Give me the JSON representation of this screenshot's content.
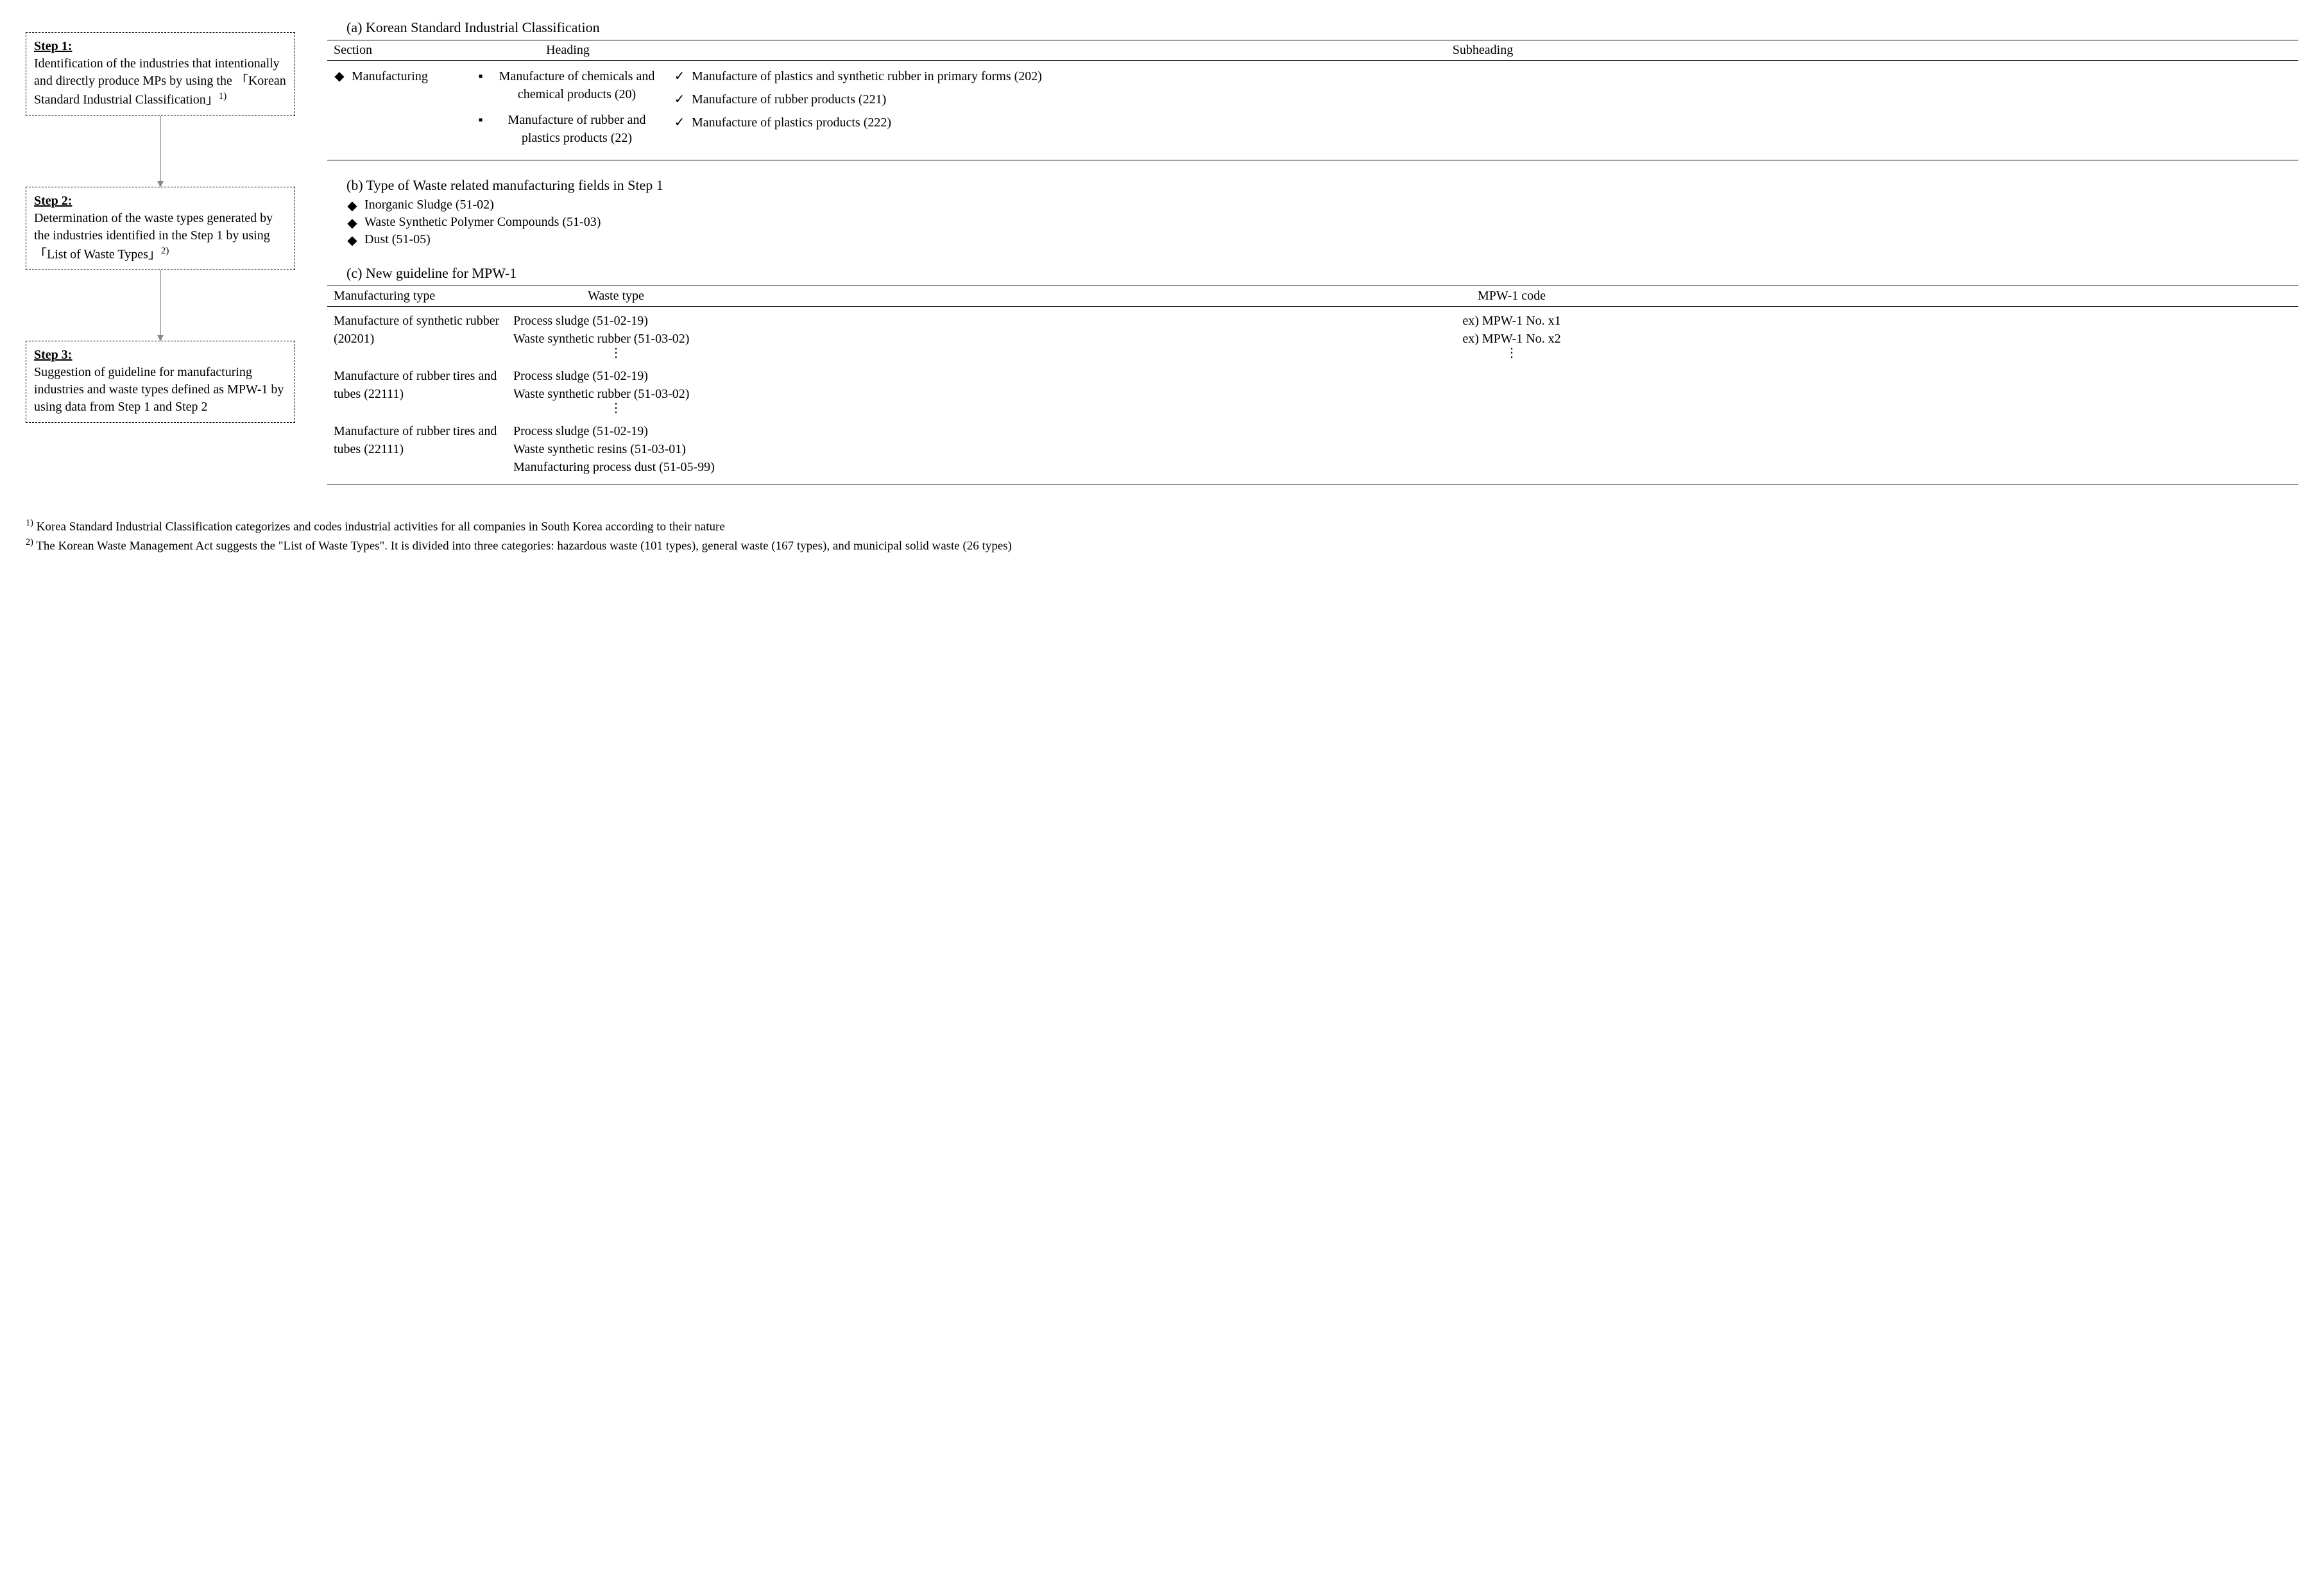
{
  "steps": [
    {
      "title": "Step 1:",
      "body": "Identification of the industries that intentionally and directly produce MPs by using the 「Korean Standard Industrial Classification」",
      "sup": "1)"
    },
    {
      "title": "Step 2:",
      "body": "Determination of the waste types generated by the industries identified in the Step 1 by using 「List of Waste Types」",
      "sup": "2)"
    },
    {
      "title": "Step 3:",
      "body": "Suggestion of guideline for manufacturing industries and waste types defined as MPW-1 by using data from Step 1 and Step 2",
      "sup": ""
    }
  ],
  "panel_a": {
    "title": "(a) Korean Standard Industrial Classification",
    "headers": [
      "Section",
      "Heading",
      "Subheading"
    ],
    "section_label": "Manufacturing",
    "headings": [
      "Manufacture of chemicals and chemical products (20)",
      "Manufacture of rubber and plastics products (22)"
    ],
    "subheadings": [
      "Manufacture of plastics and synthetic rubber in primary forms (202)",
      "Manufacture of rubber products (221)",
      "Manufacture of plastics products (222)"
    ]
  },
  "panel_b": {
    "title": "(b) Type of Waste related manufacturing fields in Step 1",
    "items": [
      "Inorganic Sludge (51-02)",
      "Waste Synthetic Polymer Compounds (51-03)",
      "Dust (51-05)"
    ]
  },
  "panel_c": {
    "title": "(c) New guideline for MPW-1",
    "headers": [
      "Manufacturing type",
      "Waste type",
      "MPW-1 code"
    ],
    "rows": [
      {
        "mfg": "Manufacture of synthetic rubber (20201)",
        "wastes": [
          "Process sludge (51-02-19)",
          "Waste synthetic rubber (51-03-02)"
        ],
        "codes": [
          "ex) MPW-1 No. x1",
          "ex) MPW-1 No. x2"
        ],
        "vdots_waste": true,
        "vdots_code": true
      },
      {
        "mfg": "Manufacture of rubber tires and tubes (22111)",
        "wastes": [
          "Process sludge (51-02-19)",
          "Waste synthetic rubber (51-03-02)"
        ],
        "codes": [],
        "vdots_waste": true,
        "vdots_code": false
      },
      {
        "mfg": "Manufacture of rubber tires and tubes (22111)",
        "wastes": [
          "Process sludge (51-02-19)",
          "Waste synthetic resins (51-03-01)",
          "Manufacturing process dust (51-05-99)"
        ],
        "codes": [],
        "vdots_waste": false,
        "vdots_code": false
      }
    ]
  },
  "footnotes": [
    {
      "sup": "1)",
      "text": "Korea Standard Industrial Classification categorizes and codes industrial activities for all companies in South Korea according to their nature"
    },
    {
      "sup": "2)",
      "text": "The Korean Waste Management Act suggests the \"List of Waste Types\". It is divided into three categories: hazardous waste (101 types), general waste (167 types), and municipal solid waste (26 types)"
    }
  ],
  "markers": {
    "diamond": "◆",
    "square": "▪",
    "check": "✓",
    "vdots": "⋮"
  }
}
